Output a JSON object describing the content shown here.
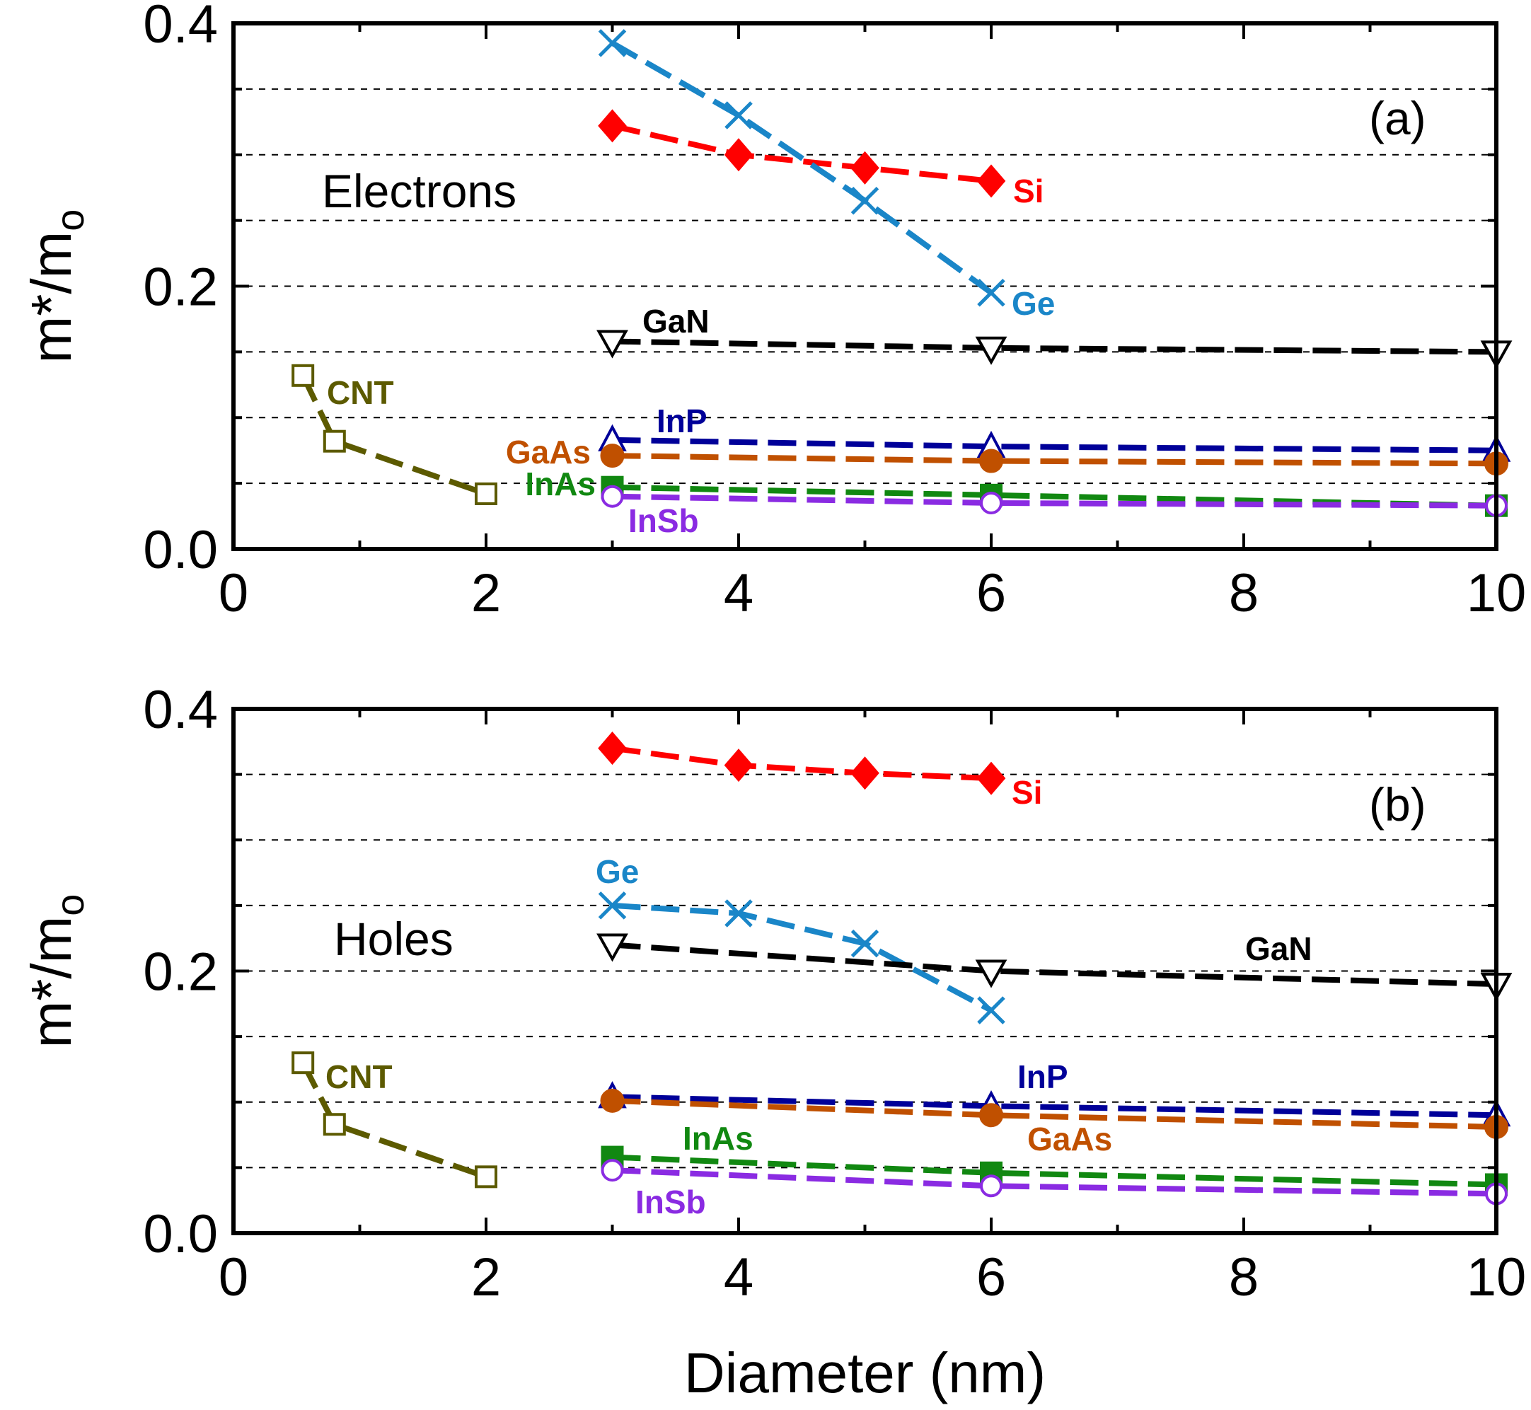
{
  "colors": {
    "Si": "#ff0000",
    "Ge": "#1a86c8",
    "GaN": "#000000",
    "InP": "#000099",
    "GaAs": "#c05000",
    "InAs": "#118811",
    "InSb": "#8a2be2",
    "CNT": "#5c5a00"
  },
  "chart_data": [
    {
      "type": "line",
      "panel_label": "(a)",
      "annotation": "Electrons",
      "ylabel": "m*/mo",
      "ylabel_main": "m*/m",
      "ylabel_sub": "o",
      "xlabel": "",
      "xlim": [
        0,
        10
      ],
      "ylim": [
        0,
        0.4
      ],
      "grid": "dashed horizontal",
      "xticks": [
        "0",
        "2",
        "4",
        "6",
        "8",
        "10"
      ],
      "yticks": [
        "0.0",
        "0.2",
        "0.4"
      ],
      "series": [
        {
          "name": "Si",
          "color": "Si",
          "marker": "diamond",
          "x": [
            3,
            4,
            5,
            6
          ],
          "y": [
            0.322,
            0.3,
            0.29,
            0.28
          ]
        },
        {
          "name": "Ge",
          "color": "Ge",
          "marker": "cross",
          "x": [
            3,
            4,
            5,
            6
          ],
          "y": [
            0.385,
            0.33,
            0.265,
            0.195
          ]
        },
        {
          "name": "GaN",
          "color": "GaN",
          "marker": "triangle-down",
          "x": [
            3,
            6,
            10
          ],
          "y": [
            0.158,
            0.153,
            0.15
          ]
        },
        {
          "name": "InP",
          "color": "InP",
          "marker": "triangle-up",
          "x": [
            3,
            6,
            10
          ],
          "y": [
            0.083,
            0.078,
            0.075
          ]
        },
        {
          "name": "GaAs",
          "color": "GaAs",
          "marker": "circle-filled",
          "x": [
            3,
            6,
            10
          ],
          "y": [
            0.071,
            0.067,
            0.065
          ]
        },
        {
          "name": "InAs",
          "color": "InAs",
          "marker": "square-filled",
          "x": [
            3,
            6,
            10
          ],
          "y": [
            0.047,
            0.041,
            0.033
          ]
        },
        {
          "name": "InSb",
          "color": "InSb",
          "marker": "circle-open",
          "x": [
            3,
            6,
            10
          ],
          "y": [
            0.04,
            0.035,
            0.033
          ]
        },
        {
          "name": "CNT",
          "color": "CNT",
          "marker": "square-open",
          "x": [
            0.55,
            0.8,
            2
          ],
          "y": [
            0.132,
            0.082,
            0.042
          ]
        }
      ]
    },
    {
      "type": "line",
      "panel_label": "(b)",
      "annotation": "Holes",
      "ylabel": "m*/mo",
      "ylabel_main": "m*/m",
      "ylabel_sub": "o",
      "xlabel": "Diameter (nm)",
      "xlim": [
        0,
        10
      ],
      "ylim": [
        0,
        0.4
      ],
      "grid": "dashed horizontal",
      "xticks": [
        "0",
        "2",
        "4",
        "6",
        "8",
        "10"
      ],
      "yticks": [
        "0.0",
        "0.2",
        "0.4"
      ],
      "series": [
        {
          "name": "Si",
          "color": "Si",
          "marker": "diamond",
          "x": [
            3,
            4,
            5,
            6
          ],
          "y": [
            0.37,
            0.357,
            0.351,
            0.347
          ]
        },
        {
          "name": "Ge",
          "color": "Ge",
          "marker": "cross",
          "x": [
            3,
            4,
            5,
            6
          ],
          "y": [
            0.25,
            0.244,
            0.221,
            0.17
          ]
        },
        {
          "name": "GaN",
          "color": "GaN",
          "marker": "triangle-down",
          "x": [
            3,
            6,
            10
          ],
          "y": [
            0.22,
            0.2,
            0.19
          ]
        },
        {
          "name": "InP",
          "color": "InP",
          "marker": "triangle-up",
          "x": [
            3,
            6,
            10
          ],
          "y": [
            0.104,
            0.097,
            0.09
          ]
        },
        {
          "name": "GaAs",
          "color": "GaAs",
          "marker": "circle-filled",
          "x": [
            3,
            6,
            10
          ],
          "y": [
            0.101,
            0.09,
            0.081
          ]
        },
        {
          "name": "InAs",
          "color": "InAs",
          "marker": "square-filled",
          "x": [
            3,
            6,
            10
          ],
          "y": [
            0.058,
            0.046,
            0.037
          ]
        },
        {
          "name": "InSb",
          "color": "InSb",
          "marker": "circle-open",
          "x": [
            3,
            6,
            10
          ],
          "y": [
            0.048,
            0.036,
            0.03
          ]
        },
        {
          "name": "CNT",
          "color": "CNT",
          "marker": "square-open",
          "x": [
            0.55,
            0.8,
            2
          ],
          "y": [
            0.13,
            0.083,
            0.043
          ]
        }
      ]
    }
  ]
}
